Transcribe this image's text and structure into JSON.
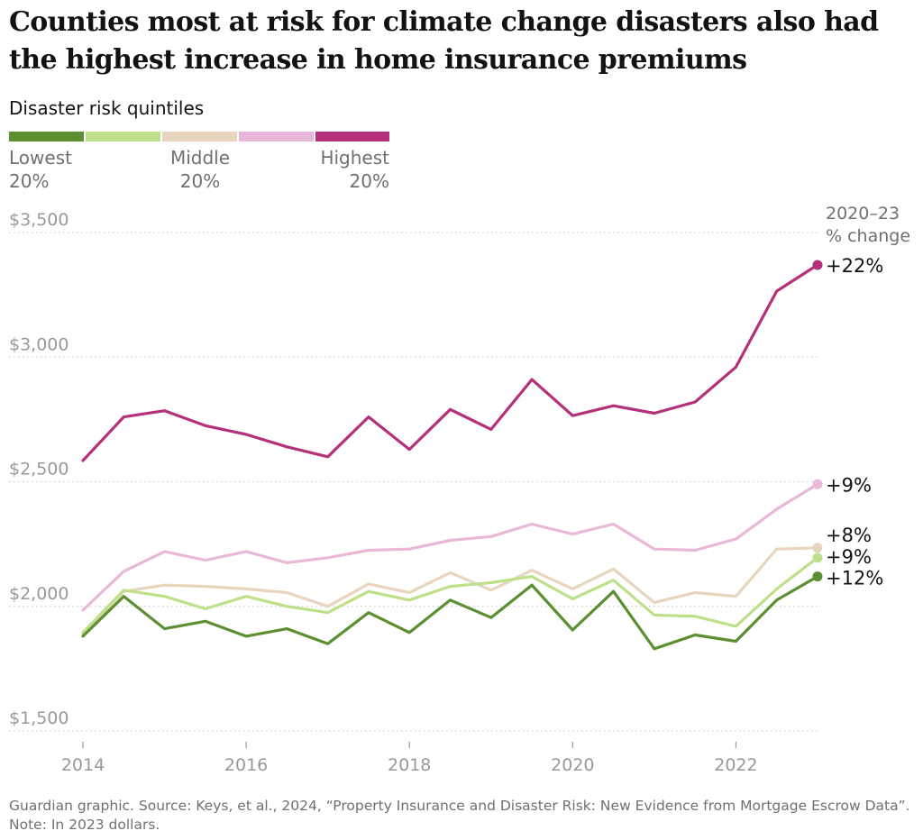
{
  "title": "Counties most at risk for climate change disasters also had the highest increase in home insurance premiums",
  "footer": "Guardian graphic. Source: Keys, et al., 2024, “Property Insurance and Disaster Risk: New Evidence from Mortgage Escrow Data”. Note: In 2023 dollars.",
  "legend": {
    "title": "Disaster risk quintiles",
    "colors": [
      "#5b8f32",
      "#bfe08b",
      "#e8d5bd",
      "#e8b8d8",
      "#b5307a"
    ],
    "labels": {
      "lowest": [
        "Lowest",
        "20%"
      ],
      "middle": [
        "Middle",
        "20%"
      ],
      "highest": [
        "Highest",
        "20%"
      ]
    }
  },
  "chart_data": {
    "type": "line",
    "x": [
      2014,
      2014.5,
      2015,
      2015.5,
      2016,
      2016.5,
      2017,
      2017.5,
      2018,
      2018.5,
      2019,
      2019.5,
      2020,
      2020.5,
      2021,
      2021.5,
      2022,
      2022.5,
      2023
    ],
    "ylim": [
      1500,
      3500
    ],
    "xlim": [
      2014,
      2023
    ],
    "y_ticks": [
      1500,
      2000,
      2500,
      3000,
      3500
    ],
    "y_tick_labels": [
      "$1,500",
      "$2,000",
      "$2,500",
      "$3,000",
      "$3,500"
    ],
    "x_ticks": [
      2014,
      2016,
      2018,
      2020,
      2022
    ],
    "x_tick_labels": [
      "2014",
      "2016",
      "2018",
      "2020",
      "2022"
    ],
    "grid": "horizontal dotted",
    "annotation": [
      "2020–23",
      "% change"
    ],
    "series": [
      {
        "color": "#e8b8d8",
        "end_label": "+9%",
        "values": [
          1985,
          2140,
          2220,
          2185,
          2220,
          2175,
          2195,
          2225,
          2230,
          2265,
          2280,
          2330,
          2290,
          2330,
          2230,
          2225,
          2270,
          2390,
          2490
        ]
      },
      {
        "color": "#e8d5bd",
        "end_label": "+8%",
        "values": [
          1890,
          2060,
          2085,
          2080,
          2070,
          2055,
          2000,
          2090,
          2055,
          2135,
          2065,
          2145,
          2070,
          2150,
          2015,
          2055,
          2040,
          2230,
          2235
        ]
      },
      {
        "color": "#bfe08b",
        "end_label": "+9%",
        "values": [
          1895,
          2065,
          2040,
          1990,
          2040,
          2000,
          1975,
          2060,
          2025,
          2080,
          2095,
          2120,
          2030,
          2105,
          1965,
          1960,
          1920,
          2070,
          2195
        ]
      },
      {
        "color": "#5b8f32",
        "end_label": "+12%",
        "values": [
          1880,
          2040,
          1910,
          1940,
          1880,
          1910,
          1850,
          1975,
          1895,
          2025,
          1955,
          2085,
          1905,
          2060,
          1830,
          1885,
          1860,
          2025,
          2120
        ]
      },
      {
        "color": "#b5307a",
        "end_label": "+22%",
        "values": [
          2585,
          2760,
          2785,
          2725,
          2690,
          2640,
          2600,
          2760,
          2630,
          2790,
          2710,
          2910,
          2765,
          2805,
          2775,
          2820,
          2960,
          3265,
          3370
        ]
      }
    ]
  }
}
